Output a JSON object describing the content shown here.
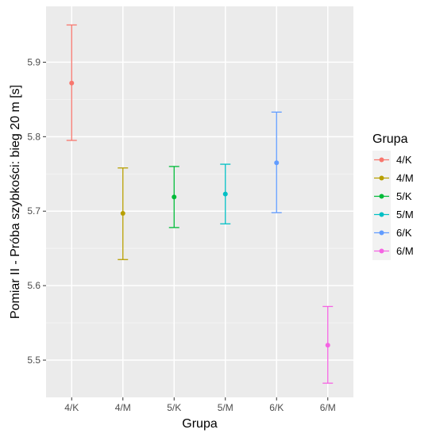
{
  "chart_data": {
    "type": "errorbar",
    "title": "",
    "xlabel": "Grupa",
    "ylabel": "Pomiar II - Próba szybkości: bieg 20 m [s]",
    "categories": [
      "4/K",
      "4/M",
      "5/K",
      "5/M",
      "6/K",
      "6/M"
    ],
    "y_ticks": [
      "5.5",
      "5.6",
      "5.7",
      "5.8",
      "5.9"
    ],
    "ylim": [
      5.45,
      5.975
    ],
    "grid": true,
    "legend": {
      "title": "Grupa",
      "position": "right"
    },
    "series": [
      {
        "name": "4/K",
        "mean": 5.872,
        "lower": 5.795,
        "upper": 5.95,
        "color": "#F8766D"
      },
      {
        "name": "4/M",
        "mean": 5.697,
        "lower": 5.635,
        "upper": 5.758,
        "color": "#B79F00"
      },
      {
        "name": "5/K",
        "mean": 5.719,
        "lower": 5.678,
        "upper": 5.76,
        "color": "#00BA38"
      },
      {
        "name": "5/M",
        "mean": 5.723,
        "lower": 5.683,
        "upper": 5.763,
        "color": "#00BFC4"
      },
      {
        "name": "6/K",
        "mean": 5.765,
        "lower": 5.698,
        "upper": 5.833,
        "color": "#619CFF"
      },
      {
        "name": "6/M",
        "mean": 5.52,
        "lower": 5.469,
        "upper": 5.572,
        "color": "#F564E3"
      }
    ]
  }
}
